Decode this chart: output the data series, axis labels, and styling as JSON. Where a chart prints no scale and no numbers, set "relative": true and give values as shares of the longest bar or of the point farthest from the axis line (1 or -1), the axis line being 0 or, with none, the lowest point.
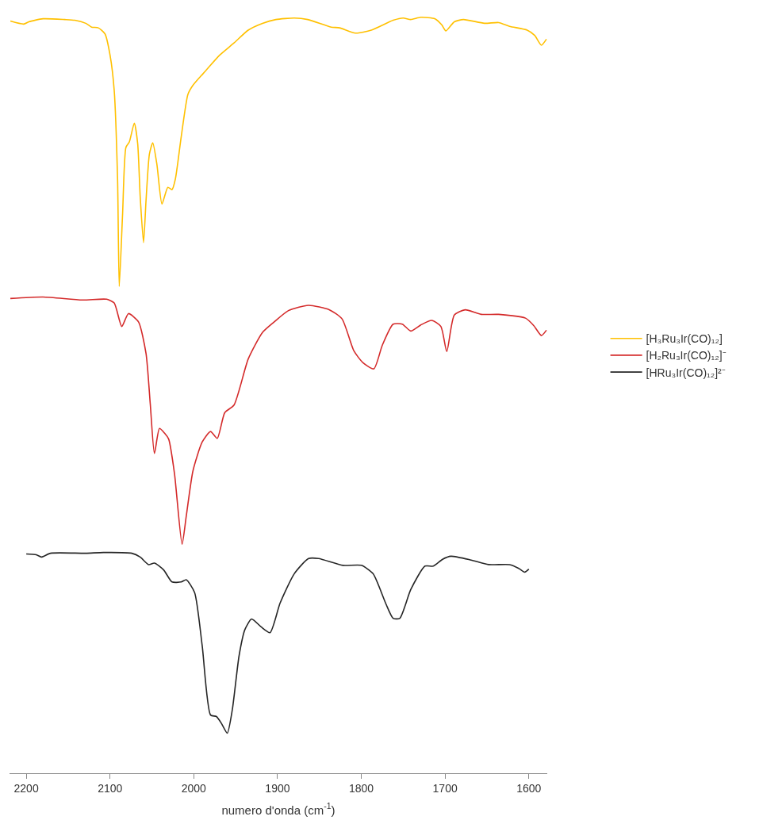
{
  "chart_data": {
    "type": "line",
    "relative": true,
    "xlabel": "numero d'onda (cm$^{-1}$)",
    "xlim": [
      2220,
      1578
    ],
    "xticks": [
      2200,
      2100,
      2000,
      1900,
      1800,
      1700,
      1600
    ],
    "tick_labels": "x",
    "grid": false,
    "legend": "right",
    "marker": "none",
    "line_style": "solid",
    "series": [
      {
        "name": "[H₃Ru₃Ir(CO)₁₂]",
        "color": "#ffc000",
        "x": [
          2219,
          2203,
          2197,
          2180,
          2154,
          2142,
          2129,
          2122,
          2114,
          2106,
          2100,
          2095,
          2091,
          2089,
          2085,
          2081,
          2077,
          2071,
          2067,
          2064,
          2060,
          2057,
          2053,
          2049,
          2044,
          2038,
          2031,
          2026,
          2022,
          2015,
          2007,
          2001,
          1986,
          1969,
          1952,
          1935,
          1918,
          1902,
          1880,
          1864,
          1836,
          1826,
          1807,
          1788,
          1762,
          1750,
          1741,
          1729,
          1712,
          1704,
          1699,
          1689,
          1678,
          1653,
          1636,
          1623,
          1602,
          1593,
          1585,
          1579
        ],
        "values": [
          0.995,
          0.991,
          0.994,
          0.998,
          0.997,
          0.996,
          0.992,
          0.987,
          0.986,
          0.978,
          0.95,
          0.903,
          0.786,
          0.644,
          0.74,
          0.828,
          0.835,
          0.86,
          0.833,
          0.763,
          0.702,
          0.758,
          0.819,
          0.834,
          0.805,
          0.753,
          0.775,
          0.772,
          0.786,
          0.842,
          0.898,
          0.91,
          0.929,
          0.95,
          0.966,
          0.983,
          0.992,
          0.997,
          0.999,
          0.997,
          0.987,
          0.986,
          0.979,
          0.983,
          0.996,
          0.999,
          0.997,
          1.0,
          0.998,
          0.99,
          0.982,
          0.994,
          0.997,
          0.992,
          0.993,
          0.988,
          0.983,
          0.976,
          0.963,
          0.971
        ]
      },
      {
        "name": "[H₂Ru₃Ir(CO)₁₂]⁻",
        "color": "#d42a2a",
        "x": [
          2219,
          2180,
          2133,
          2104,
          2095,
          2086,
          2078,
          2066,
          2057,
          2052,
          2047,
          2041,
          2035,
          2030,
          2023,
          2014,
          2009,
          2001,
          1990,
          1980,
          1972,
          1963,
          1952,
          1935,
          1918,
          1904,
          1887,
          1863,
          1838,
          1823,
          1809,
          1798,
          1785,
          1775,
          1762,
          1751,
          1741,
          1729,
          1716,
          1705,
          1698,
          1689,
          1676,
          1657,
          1636,
          1604,
          1594,
          1585,
          1579
        ],
        "values": [
          0.628,
          0.63,
          0.626,
          0.627,
          0.622,
          0.591,
          0.608,
          0.597,
          0.555,
          0.489,
          0.423,
          0.456,
          0.45,
          0.442,
          0.396,
          0.303,
          0.34,
          0.4,
          0.438,
          0.452,
          0.443,
          0.477,
          0.487,
          0.548,
          0.583,
          0.597,
          0.612,
          0.619,
          0.613,
          0.601,
          0.559,
          0.543,
          0.535,
          0.566,
          0.594,
          0.594,
          0.585,
          0.593,
          0.599,
          0.591,
          0.558,
          0.606,
          0.613,
          0.607,
          0.607,
          0.602,
          0.592,
          0.579,
          0.586
        ]
      },
      {
        "name": "[HRu₃Ir(CO)₁₂]²⁻",
        "color": "#262626",
        "x": [
          2200,
          2188,
          2182,
          2171,
          2129,
          2108,
          2074,
          2064,
          2054,
          2047,
          2036,
          2026,
          2015,
          2009,
          1999,
          1990,
          1980,
          1973,
          1967,
          1960,
          1954,
          1946,
          1939,
          1931,
          1920,
          1909,
          1897,
          1880,
          1863,
          1851,
          1822,
          1800,
          1786,
          1771,
          1762,
          1754,
          1741,
          1724,
          1714,
          1703,
          1693,
          1669,
          1648,
          1623,
          1612,
          1605,
          1600
        ],
        "values": [
          0.29,
          0.289,
          0.286,
          0.291,
          0.291,
          0.292,
          0.291,
          0.286,
          0.276,
          0.278,
          0.269,
          0.253,
          0.253,
          0.256,
          0.239,
          0.169,
          0.077,
          0.075,
          0.066,
          0.053,
          0.084,
          0.155,
          0.19,
          0.204,
          0.194,
          0.186,
          0.225,
          0.264,
          0.284,
          0.284,
          0.275,
          0.275,
          0.264,
          0.225,
          0.205,
          0.205,
          0.243,
          0.274,
          0.274,
          0.283,
          0.287,
          0.282,
          0.276,
          0.276,
          0.271,
          0.266,
          0.27
        ]
      }
    ]
  }
}
